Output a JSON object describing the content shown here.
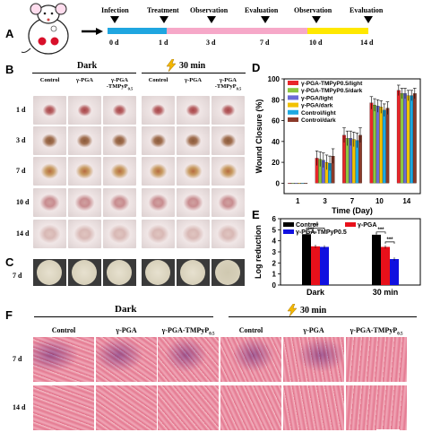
{
  "panels": {
    "A": "A",
    "B": "B",
    "C": "C",
    "D": "D",
    "E": "E",
    "F": "F"
  },
  "timeline": {
    "events": [
      "Infection",
      "Treatment",
      "Observation",
      "Evaluation",
      "Observation",
      "Evaluation"
    ],
    "days": [
      "0 d",
      "1 d",
      "3 d",
      "7 d",
      "10 d",
      "14 d"
    ]
  },
  "panel_b": {
    "dark_label": "Dark",
    "light_label": "30 min",
    "groups": [
      "Control",
      "γ-PGA",
      "γ-PGA -TMPyP0.5",
      "Control",
      "γ-PGA",
      "γ-PGA -TMPyP0.5"
    ],
    "group_lines": [
      [
        "Control"
      ],
      [
        "γ-PGA"
      ],
      [
        "γ-PGA",
        "-TMPyP",
        "0.5"
      ],
      [
        "Control"
      ],
      [
        "γ-PGA"
      ],
      [
        "γ-PGA",
        "-TMPyP",
        "0.5"
      ]
    ],
    "rows": [
      "1 d",
      "3 d",
      "7 d",
      "10 d",
      "14 d"
    ]
  },
  "panel_c": {
    "row": "7 d"
  },
  "panel_f": {
    "dark_label": "Dark",
    "light_label": "30 min",
    "groups": [
      "Control",
      "γ-PGA",
      "γ-PGA-TMPyP",
      "Control",
      "γ-PGA",
      "γ-PGA-TMPyP"
    ],
    "group_sub": "0.5",
    "rows": [
      "7 d",
      "14 d"
    ]
  },
  "chart_data": [
    {
      "panel": "D",
      "type": "bar",
      "ylabel": "Wound Closure (%)",
      "xlabel": "Time (Day)",
      "categories": [
        "1",
        "3",
        "7",
        "10",
        "14"
      ],
      "ylim": [
        -10,
        100
      ],
      "yticks": [
        0,
        20,
        40,
        60,
        80,
        100
      ],
      "legend_position": "top-left",
      "series": [
        {
          "name": "γ-PGA-TMPyP0.5/light",
          "color": "#e8262a",
          "values": [
            0,
            24,
            46,
            77,
            89
          ]
        },
        {
          "name": "γ-PGA-TMPyP0.5/dark",
          "color": "#8dc63f",
          "values": [
            0,
            23,
            43,
            75,
            86
          ]
        },
        {
          "name": "γ-PGA/light",
          "color": "#6b6bd6",
          "values": [
            0,
            22,
            43,
            74,
            86
          ]
        },
        {
          "name": "γ-PGA/dark",
          "color": "#f2c200",
          "values": [
            0,
            20,
            42,
            73,
            84
          ]
        },
        {
          "name": "Control/light",
          "color": "#1ea9e1",
          "values": [
            0,
            19,
            41,
            70,
            84
          ]
        },
        {
          "name": "Control/dark",
          "color": "#8b3a2a",
          "values": [
            0,
            26,
            46,
            72,
            86
          ]
        }
      ],
      "errors": [
        0,
        7,
        7,
        6,
        5
      ]
    },
    {
      "panel": "E",
      "type": "bar",
      "ylabel": "Log reduction",
      "categories": [
        "Dark",
        "30 min"
      ],
      "ylim": [
        0,
        6
      ],
      "yticks": [
        0,
        1,
        2,
        3,
        4,
        5,
        6
      ],
      "legend_position": "top-left",
      "series": [
        {
          "name": "Control",
          "color": "#000000",
          "values": [
            4.6,
            4.55
          ]
        },
        {
          "name": "γ-PGA",
          "color": "#e8101a",
          "values": [
            3.5,
            3.45
          ]
        },
        {
          "name": "γ-PGA-TMPyP0.5",
          "color": "#1010e0",
          "values": [
            3.45,
            2.35
          ]
        }
      ],
      "annotations": [
        "***",
        "***",
        "***",
        "***"
      ]
    }
  ]
}
